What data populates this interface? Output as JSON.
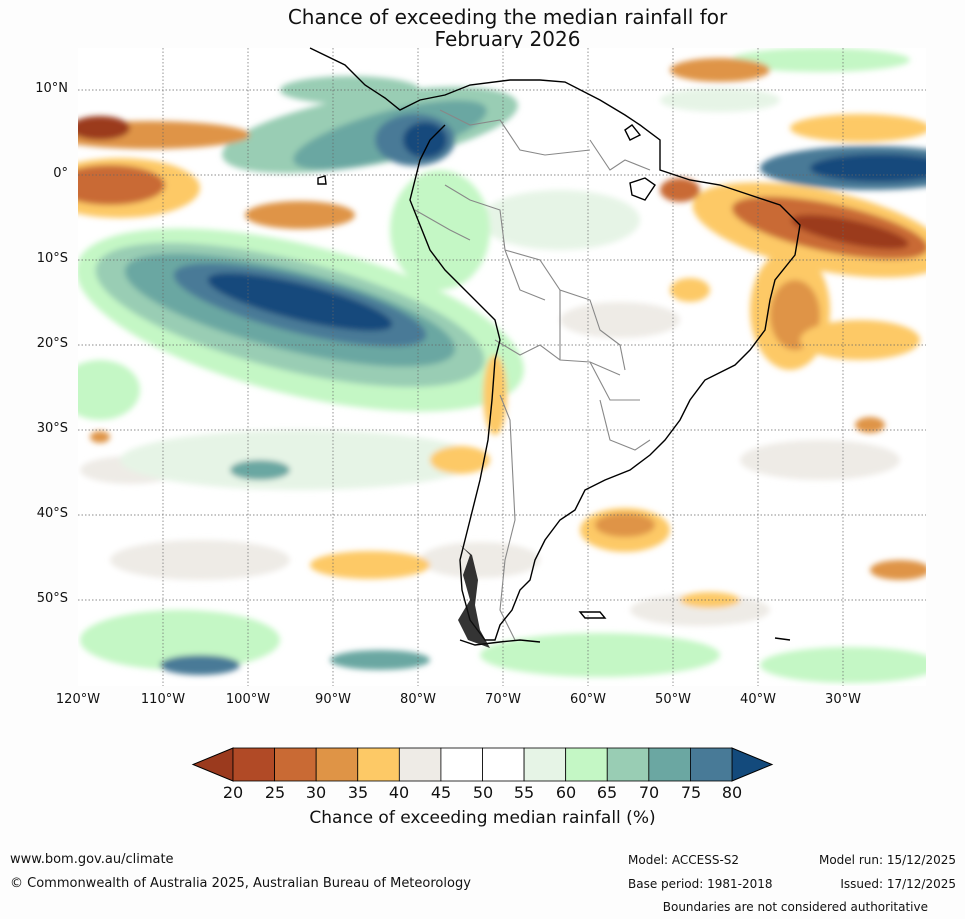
{
  "title": {
    "line1": "Chance of exceeding the median rainfall for",
    "line2": "February 2026"
  },
  "axes": {
    "lat_labels": [
      "10°N",
      "0°",
      "10°S",
      "20°S",
      "30°S",
      "40°S",
      "50°S"
    ],
    "lon_labels": [
      "120°W",
      "110°W",
      "100°W",
      "90°W",
      "80°W",
      "70°W",
      "60°W",
      "50°W",
      "40°W",
      "30°W"
    ]
  },
  "colorbar": {
    "ticks": [
      "20",
      "25",
      "30",
      "35",
      "40",
      "45",
      "50",
      "55",
      "60",
      "65",
      "70",
      "75",
      "80"
    ],
    "colors": [
      "#9b3a1e",
      "#b14a26",
      "#c96a34",
      "#df9446",
      "#fdc966",
      "#eeebe6",
      "#ffffff",
      "#ffffff",
      "#e6f4e6",
      "#c4f7c5",
      "#99cdb4",
      "#6ba7a2",
      "#487a97",
      "#134a7c"
    ],
    "label": "Chance of exceeding median rainfall (%)"
  },
  "footer": {
    "website": "www.bom.gov.au/climate",
    "copyright": "© Commonwealth of Australia 2025, Australian Bureau of Meteorology",
    "model": "Model: ACCESS-S2",
    "base_period": "Base period: 1981-2018",
    "model_run": "Model run: 15/12/2025",
    "issued": "Issued: 17/12/2025",
    "disclaimer": "Boundaries are not considered authoritative"
  }
}
